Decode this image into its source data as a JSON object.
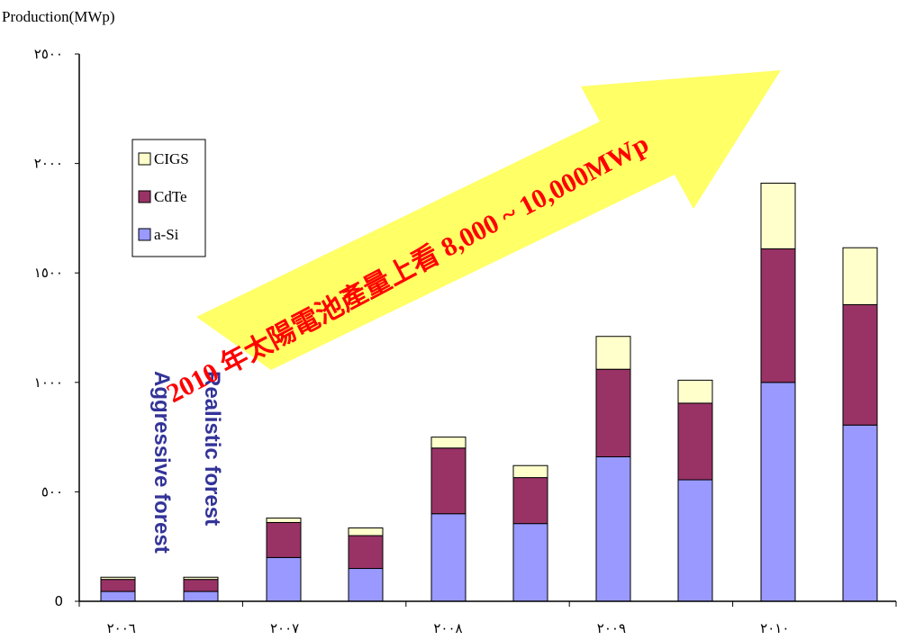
{
  "chart_data": {
    "type": "bar",
    "stacked": true,
    "ylabel": "Production(MWp)",
    "ylim": [
      0,
      2500
    ],
    "y_ticks": [
      {
        "value": 0,
        "label": "0"
      },
      {
        "value": 500,
        "label": "٥٠٠"
      },
      {
        "value": 1000,
        "label": "١٠٠٠"
      },
      {
        "value": 1500,
        "label": "١٥٠٠"
      },
      {
        "value": 2000,
        "label": "٢٠٠٠"
      },
      {
        "value": 2500,
        "label": "٢٥٠٠"
      }
    ],
    "x_ticks": [
      "٢٠٠٦",
      "٢٠٠٧",
      "٢٠٠٨",
      "٢٠٠٩",
      "٢٠١٠"
    ],
    "grid": false,
    "legend": {
      "position": "upper-left-inside",
      "entries": [
        "CIGS",
        "CdTe",
        "a-Si"
      ]
    },
    "series": [
      {
        "name": "a-Si",
        "color": "#9999ff",
        "values": [
          45,
          45,
          200,
          150,
          400,
          355,
          660,
          555,
          1000,
          805
        ]
      },
      {
        "name": "CdTe",
        "color": "#993366",
        "values": [
          55,
          55,
          160,
          150,
          300,
          210,
          400,
          350,
          610,
          550
        ]
      },
      {
        "name": "CIGS",
        "color": "#ffffcc",
        "values": [
          10,
          10,
          20,
          35,
          50,
          55,
          150,
          105,
          300,
          260
        ]
      }
    ],
    "bar_labels": [
      "Aggressive forest",
      "Realistic forest"
    ],
    "annotations": {
      "arrow_text": "2010 年太陽電池產量上看 8,000 ~ 10,000MWp",
      "arrow_color": "#ffff66",
      "arrow_text_color": "#ff0000",
      "bar_label_color": "#333399"
    }
  }
}
